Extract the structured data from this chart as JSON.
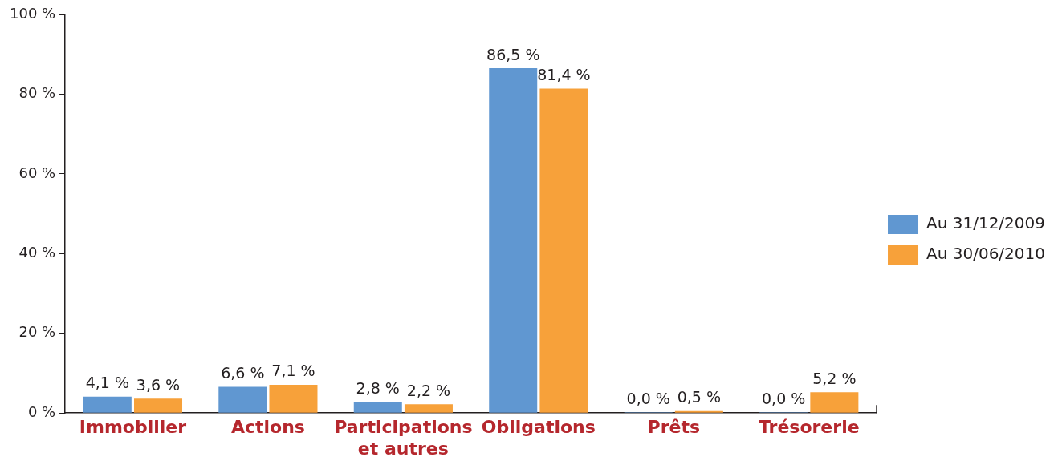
{
  "chart_data": {
    "type": "bar",
    "categories": [
      "Immobilier",
      "Actions",
      "Participations et autres",
      "Obligations",
      "Prêts",
      "Trésorerie"
    ],
    "series": [
      {
        "name": "Au 31/12/2009",
        "color": "#6097d1",
        "values": [
          4.1,
          6.6,
          2.8,
          86.5,
          0.0,
          0.0
        ],
        "value_labels": [
          "4,1 %",
          "6,6 %",
          "2,8 %",
          "86,5 %",
          "0,0 %",
          "0,0 %"
        ]
      },
      {
        "name": "Au 30/06/2010",
        "color": "#f7a13a",
        "values": [
          3.6,
          7.1,
          2.2,
          81.4,
          0.5,
          5.2
        ],
        "value_labels": [
          "3,6 %",
          "7,1 %",
          "2,2 %",
          "81,4 %",
          "0,5 %",
          "5,2 %"
        ]
      }
    ],
    "ylim": [
      0,
      100
    ],
    "yticks": [
      {
        "value": 0,
        "label": "0 %"
      },
      {
        "value": 20,
        "label": "20 %"
      },
      {
        "value": 40,
        "label": "40 %"
      },
      {
        "value": 60,
        "label": "60 %"
      },
      {
        "value": 80,
        "label": "80 %"
      },
      {
        "value": 100,
        "label": "100 %"
      }
    ],
    "grid": false,
    "legend": "right"
  }
}
